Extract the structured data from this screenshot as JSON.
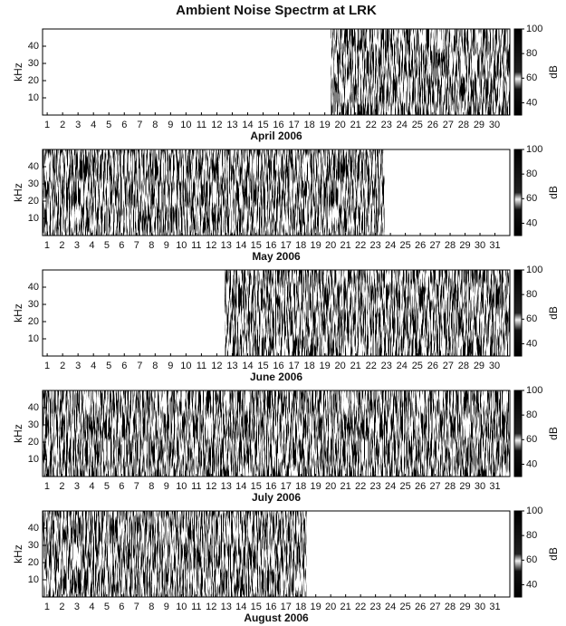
{
  "chart_data": [
    {
      "type": "spectrogram",
      "title": "Ambient Noise Spectrm at LRK",
      "xlabel": "April 2006",
      "ylabel": "kHz",
      "xticks": [
        1,
        2,
        3,
        4,
        5,
        6,
        7,
        8,
        9,
        10,
        11,
        12,
        13,
        14,
        15,
        16,
        17,
        18,
        19,
        20,
        21,
        22,
        23,
        24,
        25,
        26,
        27,
        28,
        29,
        30
      ],
      "xlim": [
        0.7,
        31
      ],
      "ylim": [
        0,
        50
      ],
      "yticks": [
        10,
        20,
        30,
        40
      ],
      "coverage": [
        19.4,
        31
      ],
      "clim": [
        30,
        100
      ],
      "cticks": [
        40,
        60,
        80,
        100
      ],
      "clabel": "dB"
    },
    {
      "type": "spectrogram",
      "xlabel": "May 2006",
      "ylabel": "kHz",
      "xticks": [
        1,
        2,
        3,
        4,
        5,
        6,
        7,
        8,
        9,
        10,
        11,
        12,
        13,
        14,
        15,
        16,
        17,
        18,
        19,
        20,
        21,
        22,
        23,
        24,
        25,
        26,
        27,
        28,
        29,
        30,
        31
      ],
      "xlim": [
        0.7,
        32
      ],
      "ylim": [
        0,
        50
      ],
      "yticks": [
        10,
        20,
        30,
        40
      ],
      "coverage": [
        0.7,
        23.6
      ],
      "clim": [
        30,
        100
      ],
      "cticks": [
        40,
        60,
        80,
        100
      ],
      "clabel": "dB"
    },
    {
      "type": "spectrogram",
      "xlabel": "June 2006",
      "ylabel": "kHz",
      "xticks": [
        1,
        2,
        3,
        4,
        5,
        6,
        7,
        8,
        9,
        10,
        11,
        12,
        13,
        14,
        15,
        16,
        17,
        18,
        19,
        20,
        21,
        22,
        23,
        24,
        25,
        26,
        27,
        28,
        29,
        30
      ],
      "xlim": [
        0.7,
        31
      ],
      "ylim": [
        0,
        50
      ],
      "yticks": [
        10,
        20,
        30,
        40
      ],
      "coverage": [
        12.5,
        31
      ],
      "clim": [
        30,
        100
      ],
      "cticks": [
        40,
        60,
        80,
        100
      ],
      "clabel": "dB"
    },
    {
      "type": "spectrogram",
      "xlabel": "July 2006",
      "ylabel": "kHz",
      "xticks": [
        1,
        2,
        3,
        4,
        5,
        6,
        7,
        8,
        9,
        10,
        11,
        12,
        13,
        14,
        15,
        16,
        17,
        18,
        19,
        20,
        21,
        22,
        23,
        24,
        25,
        26,
        27,
        28,
        29,
        30,
        31
      ],
      "xlim": [
        0.7,
        32
      ],
      "ylim": [
        0,
        50
      ],
      "yticks": [
        10,
        20,
        30,
        40
      ],
      "coverage": [
        0.7,
        32
      ],
      "clim": [
        30,
        100
      ],
      "cticks": [
        40,
        60,
        80,
        100
      ],
      "clabel": "dB"
    },
    {
      "type": "spectrogram",
      "xlabel": "August 2006",
      "ylabel": "kHz",
      "xticks": [
        1,
        2,
        3,
        4,
        5,
        6,
        7,
        8,
        9,
        10,
        11,
        12,
        13,
        14,
        15,
        16,
        17,
        18,
        19,
        20,
        21,
        22,
        23,
        24,
        25,
        26,
        27,
        28,
        29,
        30,
        31
      ],
      "xlim": [
        0.7,
        32
      ],
      "ylim": [
        0,
        50
      ],
      "yticks": [
        10,
        20,
        30,
        40
      ],
      "coverage": [
        0.7,
        18.4
      ],
      "clim": [
        30,
        100
      ],
      "cticks": [
        40,
        60,
        80,
        100
      ],
      "clabel": "dB"
    }
  ]
}
